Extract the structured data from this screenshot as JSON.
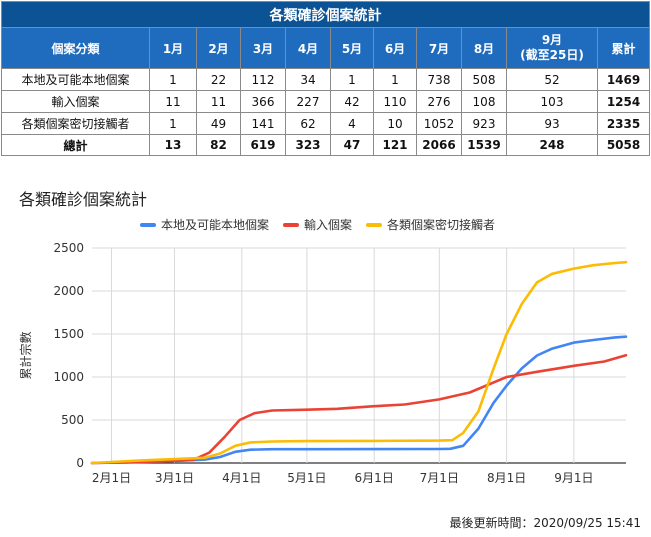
{
  "table": {
    "title": "各類確診個案統計",
    "headers": [
      "個案分類",
      "1月",
      "2月",
      "3月",
      "4月",
      "5月",
      "6月",
      "7月",
      "8月",
      "9月",
      "(截至25日)",
      "累計"
    ],
    "rows": [
      {
        "label": "本地及可能本地個案",
        "values": [
          "1",
          "22",
          "112",
          "34",
          "1",
          "1",
          "738",
          "508",
          "52"
        ],
        "total": "1469"
      },
      {
        "label": "輸入個案",
        "values": [
          "11",
          "11",
          "366",
          "227",
          "42",
          "110",
          "276",
          "108",
          "103"
        ],
        "total": "1254"
      },
      {
        "label": "各類個案密切接觸者",
        "values": [
          "1",
          "49",
          "141",
          "62",
          "4",
          "10",
          "1052",
          "923",
          "93"
        ],
        "total": "2335"
      }
    ],
    "totals": {
      "label": "總計",
      "values": [
        "13",
        "82",
        "619",
        "323",
        "47",
        "121",
        "2066",
        "1539",
        "248"
      ],
      "total": "5058"
    }
  },
  "chart_data": {
    "type": "line",
    "title": "各類確診個案統計",
    "ylabel": "累計宗數",
    "xlabel": "",
    "x_ticks": [
      "2月1日",
      "3月1日",
      "4月1日",
      "5月1日",
      "6月1日",
      "7月1日",
      "8月1日",
      "9月1日"
    ],
    "y_ticks": [
      0,
      500,
      1000,
      1500,
      2000,
      2500
    ],
    "ylim": [
      0,
      2500
    ],
    "xlim": [
      "2020-01-23",
      "2020-09-25"
    ],
    "grid": true,
    "legend_position": "top",
    "series": [
      {
        "name": "本地及可能本地個案",
        "color": "#4285f4",
        "points": [
          [
            "2020-01-23",
            0
          ],
          [
            "2020-02-15",
            10
          ],
          [
            "2020-03-01",
            25
          ],
          [
            "2020-03-15",
            40
          ],
          [
            "2020-03-22",
            70
          ],
          [
            "2020-03-29",
            130
          ],
          [
            "2020-04-05",
            155
          ],
          [
            "2020-04-15",
            160
          ],
          [
            "2020-05-01",
            160
          ],
          [
            "2020-06-01",
            162
          ],
          [
            "2020-07-01",
            163
          ],
          [
            "2020-07-06",
            165
          ],
          [
            "2020-07-12",
            200
          ],
          [
            "2020-07-19",
            400
          ],
          [
            "2020-07-26",
            700
          ],
          [
            "2020-08-01",
            900
          ],
          [
            "2020-08-08",
            1100
          ],
          [
            "2020-08-15",
            1250
          ],
          [
            "2020-08-22",
            1330
          ],
          [
            "2020-09-01",
            1400
          ],
          [
            "2020-09-10",
            1430
          ],
          [
            "2020-09-20",
            1460
          ],
          [
            "2020-09-25",
            1469
          ]
        ]
      },
      {
        "name": "輸入個案",
        "color": "#ea4335",
        "points": [
          [
            "2020-01-23",
            0
          ],
          [
            "2020-02-15",
            12
          ],
          [
            "2020-03-01",
            25
          ],
          [
            "2020-03-10",
            40
          ],
          [
            "2020-03-17",
            120
          ],
          [
            "2020-03-24",
            300
          ],
          [
            "2020-03-31",
            500
          ],
          [
            "2020-04-07",
            580
          ],
          [
            "2020-04-15",
            610
          ],
          [
            "2020-05-01",
            620
          ],
          [
            "2020-05-15",
            630
          ],
          [
            "2020-06-01",
            660
          ],
          [
            "2020-06-15",
            680
          ],
          [
            "2020-07-01",
            740
          ],
          [
            "2020-07-15",
            820
          ],
          [
            "2020-08-01",
            1000
          ],
          [
            "2020-08-15",
            1060
          ],
          [
            "2020-09-01",
            1130
          ],
          [
            "2020-09-15",
            1180
          ],
          [
            "2020-09-25",
            1254
          ]
        ]
      },
      {
        "name": "各類個案密切接觸者",
        "color": "#fbbc04",
        "points": [
          [
            "2020-01-23",
            0
          ],
          [
            "2020-02-15",
            30
          ],
          [
            "2020-03-01",
            45
          ],
          [
            "2020-03-15",
            60
          ],
          [
            "2020-03-22",
            110
          ],
          [
            "2020-03-29",
            200
          ],
          [
            "2020-04-05",
            240
          ],
          [
            "2020-04-15",
            250
          ],
          [
            "2020-05-01",
            255
          ],
          [
            "2020-06-01",
            257
          ],
          [
            "2020-07-01",
            260
          ],
          [
            "2020-07-07",
            265
          ],
          [
            "2020-07-12",
            350
          ],
          [
            "2020-07-19",
            600
          ],
          [
            "2020-07-26",
            1100
          ],
          [
            "2020-08-01",
            1500
          ],
          [
            "2020-08-08",
            1850
          ],
          [
            "2020-08-15",
            2100
          ],
          [
            "2020-08-22",
            2200
          ],
          [
            "2020-09-01",
            2260
          ],
          [
            "2020-09-10",
            2300
          ],
          [
            "2020-09-20",
            2325
          ],
          [
            "2020-09-25",
            2335
          ]
        ]
      }
    ]
  },
  "footer": {
    "updated": "最後更新時間：2020/09/25 15:41"
  }
}
